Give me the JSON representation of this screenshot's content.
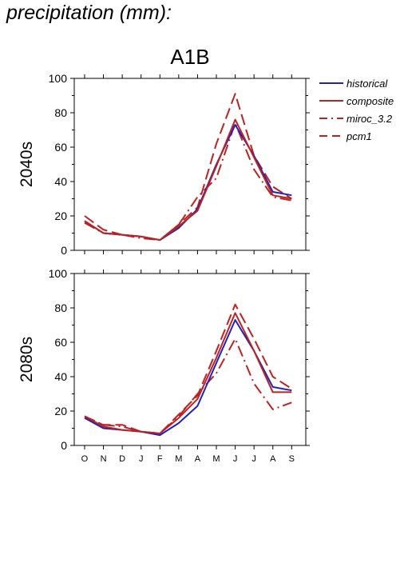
{
  "page_title": "precipitation (mm):",
  "colors": {
    "historical": "#2222bb",
    "ensemble": "#bb2222",
    "frame": "#000000"
  },
  "chart_data": [
    {
      "type": "line",
      "title": "A1B",
      "ylabel": "2040s",
      "xlabel": "",
      "categories": [
        "O",
        "N",
        "D",
        "J",
        "F",
        "M",
        "A",
        "M",
        "J",
        "J",
        "A",
        "S"
      ],
      "ylim": [
        0,
        100
      ],
      "yticks": [
        0,
        20,
        40,
        60,
        80,
        100
      ],
      "grid": false,
      "legend": "right",
      "series": [
        {
          "name": "historical",
          "style": "solid",
          "color": "#2222bb",
          "values": [
            17,
            10,
            9,
            8,
            6,
            13,
            24,
            50,
            73,
            55,
            34,
            32
          ]
        },
        {
          "name": "composite",
          "style": "solid",
          "color": "#bb2222",
          "values": [
            17,
            10,
            9,
            8,
            6,
            14,
            23,
            49,
            76,
            54,
            32,
            30
          ]
        },
        {
          "name": "miroc_3.2",
          "style": "dashdot",
          "color": "#bb2222",
          "values": [
            16,
            10,
            9,
            7,
            6,
            15,
            31,
            42,
            74,
            47,
            31,
            29
          ]
        },
        {
          "name": "pcm1",
          "style": "dashed",
          "color": "#bb2222",
          "values": [
            20,
            12,
            9,
            8,
            6,
            15,
            25,
            62,
            91,
            55,
            37,
            30
          ]
        }
      ]
    },
    {
      "type": "line",
      "title": "",
      "ylabel": "2080s",
      "xlabel": "",
      "categories": [
        "O",
        "N",
        "D",
        "J",
        "F",
        "M",
        "A",
        "M",
        "J",
        "J",
        "A",
        "S"
      ],
      "xticks": [
        "O",
        "N",
        "D",
        "J",
        "F",
        "M",
        "A",
        "M",
        "J",
        "J",
        "A",
        "S"
      ],
      "ylim": [
        0,
        100
      ],
      "yticks": [
        0,
        20,
        40,
        60,
        80,
        100
      ],
      "grid": false,
      "series": [
        {
          "name": "historical",
          "style": "solid",
          "color": "#2222bb",
          "values": [
            16,
            10,
            9,
            8,
            6,
            13,
            23,
            48,
            73,
            55,
            34,
            32
          ]
        },
        {
          "name": "composite",
          "style": "solid",
          "color": "#bb2222",
          "values": [
            17,
            11,
            9,
            8,
            7,
            16,
            27,
            51,
            77,
            55,
            31,
            31
          ]
        },
        {
          "name": "miroc_3.2",
          "style": "dashdot",
          "color": "#bb2222",
          "values": [
            17,
            12,
            11,
            8,
            7,
            17,
            30,
            42,
            62,
            36,
            21,
            25
          ]
        },
        {
          "name": "pcm1",
          "style": "dashed",
          "color": "#bb2222",
          "values": [
            16,
            12,
            12,
            8,
            7,
            18,
            29,
            55,
            82,
            62,
            40,
            33
          ]
        }
      ]
    }
  ]
}
